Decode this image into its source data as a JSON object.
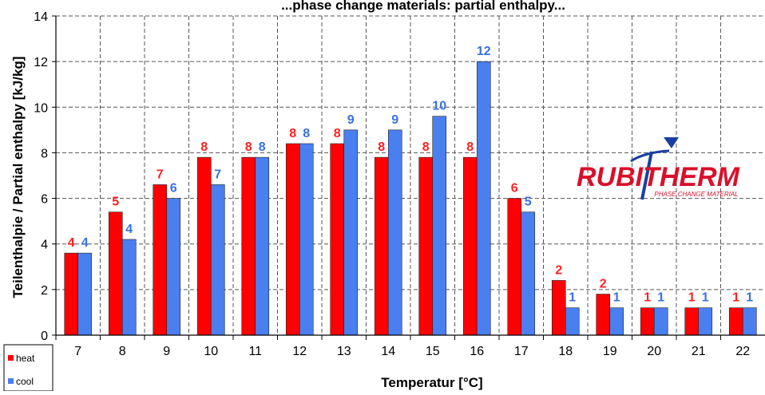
{
  "chart_data": {
    "type": "bar",
    "title": "...phase change materials: partial enthalpy...",
    "xlabel": "Temperatur [°C]",
    "ylabel": "Teilenthalpie / Partial enthalpy [kJ/kg]",
    "categories": [
      "7",
      "8",
      "9",
      "10",
      "11",
      "12",
      "13",
      "14",
      "15",
      "16",
      "17",
      "18",
      "19",
      "20",
      "21",
      "22"
    ],
    "ylim": [
      0,
      14
    ],
    "yticks": [
      "0",
      "2",
      "4",
      "6",
      "8",
      "10",
      "12",
      "14"
    ],
    "grid": true,
    "legend_position": "bottom-left",
    "series": [
      {
        "name": "heat",
        "color": "#ff0000",
        "label_color": "#ff2020",
        "values": [
          3.6,
          5.4,
          6.6,
          7.8,
          7.8,
          8.4,
          8.4,
          7.8,
          7.8,
          7.8,
          6.0,
          2.4,
          1.8,
          1.2,
          1.2,
          1.2
        ],
        "labels": [
          "4",
          "5",
          "7",
          "8",
          "8",
          "8",
          "8",
          "8",
          "8",
          "8",
          "6",
          "2",
          "2",
          "1",
          "1",
          "1"
        ]
      },
      {
        "name": "cool",
        "color": "#4a7ff0",
        "label_color": "#3a6fe0",
        "values": [
          3.6,
          4.2,
          6.0,
          6.6,
          7.8,
          8.4,
          9.0,
          9.0,
          9.6,
          12.0,
          5.4,
          1.2,
          1.2,
          1.2,
          1.2,
          1.2
        ],
        "labels": [
          "4",
          "4",
          "6",
          "7",
          "8",
          "8",
          "9",
          "9",
          "10",
          "12",
          "5",
          "1",
          "1",
          "1",
          "1",
          "1"
        ]
      }
    ]
  },
  "logo": {
    "text": "RUBITHERM",
    "subtitle": "PHASE CHANGE MATERIAL",
    "color": "#d9102b",
    "mark_color": "#1a3fa0"
  }
}
